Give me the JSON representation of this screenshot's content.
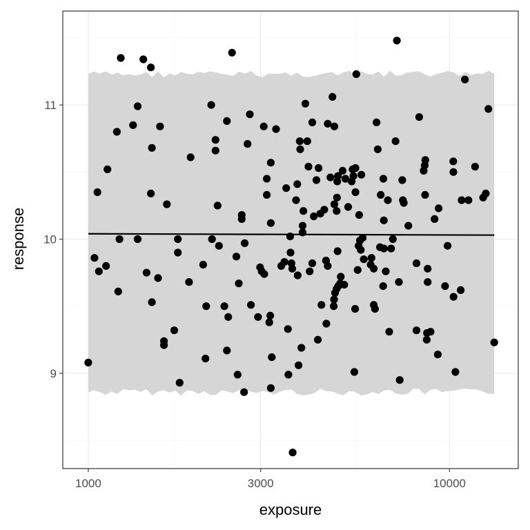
{
  "chart_data": {
    "type": "scatter",
    "title": "",
    "xlabel": "exposure",
    "ylabel": "response",
    "x_scale": "log10",
    "xlim": [
      850,
      15500
    ],
    "ylim": [
      8.29,
      11.7
    ],
    "x_ticks": [
      {
        "value": 1000,
        "label": "1000"
      },
      {
        "value": 3000,
        "label": "3000"
      },
      {
        "value": 10000,
        "label": "10000"
      }
    ],
    "y_ticks": [
      {
        "value": 9,
        "label": "9"
      },
      {
        "value": 10,
        "label": "10"
      },
      {
        "value": 11,
        "label": "11"
      }
    ],
    "grid": true,
    "legend": "none",
    "colors": {
      "points": "#000000",
      "band": "#d6d6d6",
      "line": "#000000",
      "grid_major": "#ebebeb",
      "grid_minor": "#f4f4f4",
      "panel_border": "#333333"
    },
    "fit_line": {
      "x": [
        1000,
        13300
      ],
      "y": [
        10.04,
        10.03
      ]
    },
    "band": {
      "x": [
        1000,
        13300
      ],
      "lower": 8.86,
      "upper": 11.23
    },
    "points": [
      [
        1000,
        9.08
      ],
      [
        1040,
        9.86
      ],
      [
        1070,
        9.76
      ],
      [
        1060,
        10.35
      ],
      [
        1120,
        9.8
      ],
      [
        1130,
        10.52
      ],
      [
        1200,
        10.8
      ],
      [
        1210,
        9.61
      ],
      [
        1230,
        11.35
      ],
      [
        1220,
        10.0
      ],
      [
        1330,
        10.85
      ],
      [
        1370,
        10.99
      ],
      [
        1370,
        10.0
      ],
      [
        1420,
        11.34
      ],
      [
        1450,
        9.75
      ],
      [
        1490,
        10.34
      ],
      [
        1490,
        11.28
      ],
      [
        1500,
        10.68
      ],
      [
        1500,
        9.53
      ],
      [
        1560,
        9.71
      ],
      [
        1580,
        10.84
      ],
      [
        1620,
        9.24
      ],
      [
        1620,
        9.21
      ],
      [
        1650,
        10.26
      ],
      [
        1730,
        9.32
      ],
      [
        1770,
        10.0
      ],
      [
        1770,
        9.9
      ],
      [
        1790,
        8.93
      ],
      [
        1900,
        9.68
      ],
      [
        1920,
        10.61
      ],
      [
        2080,
        9.81
      ],
      [
        2110,
        9.11
      ],
      [
        2120,
        9.5
      ],
      [
        2190,
        11.0
      ],
      [
        2200,
        10.0
      ],
      [
        2250,
        10.74
      ],
      [
        2250,
        10.66
      ],
      [
        2280,
        10.25
      ],
      [
        2300,
        9.95
      ],
      [
        2380,
        9.5
      ],
      [
        2420,
        10.88
      ],
      [
        2440,
        9.42
      ],
      [
        2420,
        9.17
      ],
      [
        2500,
        11.39
      ],
      [
        2570,
        9.87
      ],
      [
        2590,
        8.99
      ],
      [
        2610,
        9.67
      ],
      [
        2660,
        10.15
      ],
      [
        2660,
        10.18
      ],
      [
        2710,
        9.97
      ],
      [
        2700,
        8.86
      ],
      [
        2760,
        10.71
      ],
      [
        2800,
        10.93
      ],
      [
        2820,
        9.51
      ],
      [
        2950,
        9.42
      ],
      [
        2990,
        9.79
      ],
      [
        3020,
        9.76
      ],
      [
        3070,
        9.74
      ],
      [
        3060,
        10.84
      ],
      [
        3120,
        10.45
      ],
      [
        3120,
        10.33
      ],
      [
        3170,
        9.38
      ],
      [
        3200,
        10.57
      ],
      [
        3200,
        10.12
      ],
      [
        3190,
        9.43
      ],
      [
        3220,
        9.12
      ],
      [
        3200,
        8.89
      ],
      [
        3310,
        10.82
      ],
      [
        3420,
        9.8
      ],
      [
        3490,
        9.83
      ],
      [
        3530,
        10.38
      ],
      [
        3580,
        8.99
      ],
      [
        3570,
        9.33
      ],
      [
        3620,
        10.02
      ],
      [
        3630,
        9.9
      ],
      [
        3650,
        9.82
      ],
      [
        3670,
        9.78
      ],
      [
        3680,
        8.41
      ],
      [
        3760,
        10.29
      ],
      [
        3800,
        9.73
      ],
      [
        3790,
        10.41
      ],
      [
        3820,
        9.06
      ],
      [
        3850,
        10.73
      ],
      [
        3860,
        10.67
      ],
      [
        3890,
        9.19
      ],
      [
        3920,
        10.05
      ],
      [
        3920,
        10.1
      ],
      [
        3940,
        10.21
      ],
      [
        3990,
        11.01
      ],
      [
        4040,
        10.73
      ],
      [
        4070,
        10.54
      ],
      [
        4100,
        9.76
      ],
      [
        4170,
        10.87
      ],
      [
        4170,
        9.82
      ],
      [
        4210,
        10.17
      ],
      [
        4280,
        10.44
      ],
      [
        4320,
        9.25
      ],
      [
        4340,
        10.53
      ],
      [
        4390,
        10.19
      ],
      [
        4420,
        9.51
      ],
      [
        4500,
        10.22
      ],
      [
        4550,
        9.84
      ],
      [
        4560,
        9.37
      ],
      [
        4600,
        10.86
      ],
      [
        4600,
        9.8
      ],
      [
        4680,
        10.46
      ],
      [
        4740,
        11.06
      ],
      [
        4780,
        9.5
      ],
      [
        4790,
        9.55
      ],
      [
        4800,
        10.84
      ],
      [
        4800,
        10.26
      ],
      [
        4820,
        9.6
      ],
      [
        4870,
        9.63
      ],
      [
        4870,
        10.21
      ],
      [
        4880,
        10.31
      ],
      [
        4890,
        10.43
      ],
      [
        4900,
        9.91
      ],
      [
        4910,
        10.47
      ],
      [
        4920,
        9.65
      ],
      [
        4980,
        9.67
      ],
      [
        5000,
        9.72
      ],
      [
        5060,
        10.51
      ],
      [
        5110,
        9.66
      ],
      [
        5150,
        10.45
      ],
      [
        5240,
        10.24
      ],
      [
        5360,
        10.43
      ],
      [
        5390,
        10.52
      ],
      [
        5420,
        10.47
      ],
      [
        5450,
        9.01
      ],
      [
        5480,
        9.48
      ],
      [
        5490,
        10.53
      ],
      [
        5490,
        10.35
      ],
      [
        5520,
        11.23
      ],
      [
        5570,
        9.77
      ],
      [
        5600,
        9.95
      ],
      [
        5620,
        10.18
      ],
      [
        5650,
        9.99
      ],
      [
        5680,
        9.92
      ],
      [
        5700,
        10.48
      ],
      [
        5750,
        10.01
      ],
      [
        5790,
        9.85
      ],
      [
        6050,
        9.81
      ],
      [
        6080,
        9.86
      ],
      [
        6170,
        9.78
      ],
      [
        6170,
        9.51
      ],
      [
        6220,
        9.48
      ],
      [
        6280,
        10.87
      ],
      [
        6330,
        10.67
      ],
      [
        6420,
        9.94
      ],
      [
        6450,
        10.33
      ],
      [
        6560,
        10.45
      ],
      [
        6550,
        9.65
      ],
      [
        6580,
        9.93
      ],
      [
        6580,
        10.14
      ],
      [
        6660,
        9.76
      ],
      [
        6750,
        10.29
      ],
      [
        6810,
        9.31
      ],
      [
        6890,
        9.93
      ],
      [
        6970,
        10.0
      ],
      [
        7090,
        10.73
      ],
      [
        7150,
        11.48
      ],
      [
        7240,
        9.68
      ],
      [
        7280,
        8.95
      ],
      [
        7400,
        10.44
      ],
      [
        7430,
        10.29
      ],
      [
        7470,
        10.27
      ],
      [
        7690,
        10.1
      ],
      [
        8100,
        9.32
      ],
      [
        8100,
        9.82
      ],
      [
        8240,
        10.91
      ],
      [
        8480,
        10.51
      ],
      [
        8540,
        10.55
      ],
      [
        8560,
        10.33
      ],
      [
        8570,
        10.59
      ],
      [
        8660,
        9.3
      ],
      [
        8650,
        9.25
      ],
      [
        8700,
        9.78
      ],
      [
        8700,
        9.68
      ],
      [
        8860,
        9.31
      ],
      [
        9090,
        10.15
      ],
      [
        9280,
        9.14
      ],
      [
        9330,
        10.23
      ],
      [
        9720,
        9.65
      ],
      [
        9880,
        9.95
      ],
      [
        10240,
        10.58
      ],
      [
        10250,
        10.5
      ],
      [
        10260,
        9.57
      ],
      [
        10380,
        9.01
      ],
      [
        10740,
        9.62
      ],
      [
        10800,
        10.29
      ],
      [
        11030,
        11.19
      ],
      [
        11280,
        10.29
      ],
      [
        11770,
        10.54
      ],
      [
        12390,
        10.31
      ],
      [
        12600,
        10.34
      ],
      [
        12810,
        10.97
      ],
      [
        13300,
        9.23
      ]
    ]
  }
}
